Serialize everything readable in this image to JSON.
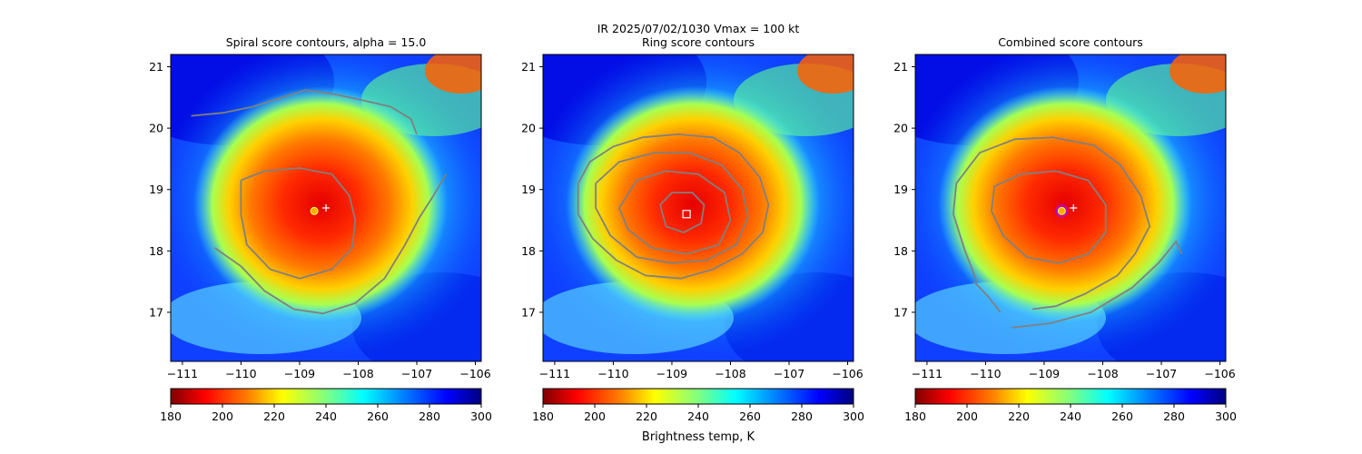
{
  "figure": {
    "suptitle_line1": "IR  2025/07/02/1030    Vmax = 100 kt",
    "colorbar_label": "Brightness temp, K"
  },
  "chart_data": [
    {
      "type": "heatmap",
      "title": "Spiral score contours, alpha = 15.0",
      "xlim": [
        -111.2,
        -105.9
      ],
      "ylim": [
        16.2,
        21.2
      ],
      "xticks": [
        -111,
        -110,
        -109,
        -108,
        -107,
        -106
      ],
      "yticks": [
        17,
        18,
        19,
        20,
        21
      ],
      "xtick_labels": [
        "−111",
        "−110",
        "−109",
        "−108",
        "−107",
        "−106"
      ],
      "ytick_labels": [
        "17",
        "18",
        "19",
        "20",
        "21"
      ],
      "colormap": "jet_r",
      "colorbar": {
        "range": [
          180,
          300
        ],
        "ticks": [
          180,
          200,
          220,
          240,
          260,
          280,
          300
        ]
      },
      "storm_center": {
        "lon": -108.55,
        "lat": 18.7
      },
      "eye_core": {
        "lon": -108.75,
        "lat": 18.65
      },
      "contour_color": "#808080",
      "contours": [
        [
          [
            -110.0,
            19.15
          ],
          [
            -109.6,
            19.3
          ],
          [
            -109.0,
            19.35
          ],
          [
            -108.45,
            19.25
          ],
          [
            -108.15,
            18.9
          ],
          [
            -108.05,
            18.5
          ],
          [
            -108.1,
            18.05
          ],
          [
            -108.45,
            17.7
          ],
          [
            -109.0,
            17.55
          ],
          [
            -109.5,
            17.7
          ],
          [
            -109.9,
            18.1
          ],
          [
            -110.0,
            18.6
          ],
          [
            -110.0,
            19.15
          ]
        ],
        [
          [
            -110.45,
            18.05
          ],
          [
            -110.0,
            17.75
          ],
          [
            -109.6,
            17.35
          ],
          [
            -109.1,
            17.05
          ],
          [
            -108.6,
            16.98
          ],
          [
            -108.05,
            17.15
          ],
          [
            -107.55,
            17.55
          ],
          [
            -107.2,
            18.1
          ],
          [
            -106.95,
            18.55
          ],
          [
            -106.75,
            18.85
          ],
          [
            -106.5,
            19.25
          ]
        ],
        [
          [
            -110.85,
            20.2
          ],
          [
            -110.3,
            20.25
          ],
          [
            -109.8,
            20.35
          ],
          [
            -109.3,
            20.5
          ],
          [
            -108.9,
            20.62
          ],
          [
            -108.4,
            20.55
          ],
          [
            -107.9,
            20.45
          ],
          [
            -107.45,
            20.35
          ],
          [
            -107.1,
            20.15
          ],
          [
            -107.0,
            19.9
          ]
        ]
      ]
    },
    {
      "type": "heatmap",
      "title": "Ring score contours",
      "xlim": [
        -111.2,
        -105.9
      ],
      "ylim": [
        16.2,
        21.2
      ],
      "xticks": [
        -111,
        -110,
        -109,
        -108,
        -107,
        -106
      ],
      "yticks": [
        17,
        18,
        19,
        20,
        21
      ],
      "xtick_labels": [
        "−111",
        "−110",
        "−109",
        "−108",
        "−107",
        "−106"
      ],
      "ytick_labels": [
        "17",
        "18",
        "19",
        "20",
        "21"
      ],
      "colormap": "jet_r",
      "colorbar": {
        "range": [
          180,
          300
        ],
        "ticks": [
          180,
          200,
          220,
          240,
          260,
          280,
          300
        ]
      },
      "storm_center": {
        "lon": -108.75,
        "lat": 18.6
      },
      "marker": "square",
      "contour_color": "#808080",
      "contours": [
        [
          [
            -110.6,
            19.1
          ],
          [
            -110.4,
            19.45
          ],
          [
            -110.0,
            19.7
          ],
          [
            -109.5,
            19.85
          ],
          [
            -108.9,
            19.9
          ],
          [
            -108.3,
            19.85
          ],
          [
            -107.85,
            19.6
          ],
          [
            -107.5,
            19.2
          ],
          [
            -107.35,
            18.75
          ],
          [
            -107.45,
            18.3
          ],
          [
            -107.8,
            17.95
          ],
          [
            -108.3,
            17.7
          ],
          [
            -108.85,
            17.55
          ],
          [
            -109.45,
            17.6
          ],
          [
            -109.95,
            17.85
          ],
          [
            -110.35,
            18.2
          ],
          [
            -110.6,
            18.6
          ],
          [
            -110.6,
            19.1
          ]
        ],
        [
          [
            -110.3,
            19.1
          ],
          [
            -109.9,
            19.45
          ],
          [
            -109.3,
            19.6
          ],
          [
            -108.7,
            19.6
          ],
          [
            -108.15,
            19.4
          ],
          [
            -107.8,
            19.0
          ],
          [
            -107.7,
            18.55
          ],
          [
            -107.9,
            18.1
          ],
          [
            -108.4,
            17.85
          ],
          [
            -109.0,
            17.8
          ],
          [
            -109.6,
            17.9
          ],
          [
            -110.05,
            18.25
          ],
          [
            -110.3,
            18.7
          ],
          [
            -110.3,
            19.1
          ]
        ],
        [
          [
            -109.9,
            18.7
          ],
          [
            -109.6,
            19.15
          ],
          [
            -109.1,
            19.3
          ],
          [
            -108.55,
            19.25
          ],
          [
            -108.1,
            18.95
          ],
          [
            -108.0,
            18.5
          ],
          [
            -108.2,
            18.1
          ],
          [
            -108.75,
            17.95
          ],
          [
            -109.35,
            18.05
          ],
          [
            -109.75,
            18.35
          ],
          [
            -109.9,
            18.7
          ]
        ],
        [
          [
            -109.2,
            18.75
          ],
          [
            -109.0,
            18.95
          ],
          [
            -108.65,
            18.95
          ],
          [
            -108.45,
            18.75
          ],
          [
            -108.5,
            18.45
          ],
          [
            -108.8,
            18.3
          ],
          [
            -109.1,
            18.4
          ],
          [
            -109.2,
            18.75
          ]
        ]
      ]
    },
    {
      "type": "heatmap",
      "title": "Combined score contours",
      "xlim": [
        -111.2,
        -105.9
      ],
      "ylim": [
        16.2,
        21.2
      ],
      "xticks": [
        -111,
        -110,
        -109,
        -108,
        -107,
        -106
      ],
      "yticks": [
        17,
        18,
        19,
        20,
        21
      ],
      "xtick_labels": [
        "−111",
        "−110",
        "−109",
        "−108",
        "−107",
        "−106"
      ],
      "ytick_labels": [
        "17",
        "18",
        "19",
        "20",
        "21"
      ],
      "colormap": "jet_r",
      "colorbar": {
        "range": [
          180,
          300
        ],
        "ticks": [
          180,
          200,
          220,
          240,
          260,
          280,
          300
        ]
      },
      "storm_center": {
        "lon": -108.5,
        "lat": 18.7
      },
      "eye_core": {
        "lon": -108.7,
        "lat": 18.65
      },
      "marker": "circle",
      "contour_color": "#808080",
      "contours": [
        [
          [
            -109.85,
            19.05
          ],
          [
            -109.4,
            19.25
          ],
          [
            -108.8,
            19.3
          ],
          [
            -108.25,
            19.15
          ],
          [
            -107.95,
            18.75
          ],
          [
            -107.95,
            18.3
          ],
          [
            -108.25,
            17.95
          ],
          [
            -108.75,
            17.8
          ],
          [
            -109.3,
            17.9
          ],
          [
            -109.7,
            18.25
          ],
          [
            -109.9,
            18.65
          ],
          [
            -109.85,
            19.05
          ]
        ],
        [
          [
            -110.15,
            17.5
          ],
          [
            -110.35,
            18.0
          ],
          [
            -110.55,
            18.6
          ],
          [
            -110.5,
            19.1
          ],
          [
            -110.1,
            19.6
          ],
          [
            -109.5,
            19.82
          ],
          [
            -108.85,
            19.85
          ],
          [
            -108.15,
            19.72
          ],
          [
            -107.7,
            19.4
          ],
          [
            -107.35,
            18.9
          ],
          [
            -107.2,
            18.4
          ],
          [
            -107.45,
            17.95
          ],
          [
            -107.75,
            17.6
          ],
          [
            -108.3,
            17.3
          ],
          [
            -108.8,
            17.1
          ],
          [
            -109.2,
            17.05
          ]
        ],
        [
          [
            -109.55,
            16.75
          ],
          [
            -108.9,
            16.82
          ],
          [
            -108.2,
            17.0
          ],
          [
            -107.5,
            17.4
          ],
          [
            -107.05,
            17.8
          ],
          [
            -106.75,
            18.15
          ],
          [
            -106.65,
            17.95
          ]
        ],
        [
          [
            -110.2,
            17.5
          ],
          [
            -109.95,
            17.25
          ],
          [
            -109.75,
            17.0
          ]
        ]
      ]
    }
  ]
}
